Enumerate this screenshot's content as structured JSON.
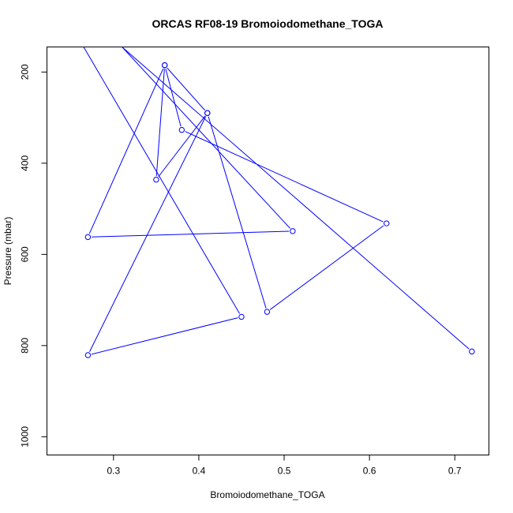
{
  "chart_data": {
    "type": "line",
    "title": "ORCAS RF08-19 Bromoiodomethane_TOGA",
    "xlabel": "Bromoiodomethane_TOGA",
    "ylabel": "Pressure (mbar)",
    "xlim": [
      0.222,
      0.74
    ],
    "ylim": [
      1040,
      145
    ],
    "y_inverted": true,
    "xticks": [
      0.3,
      0.4,
      0.5,
      0.6,
      0.7
    ],
    "xtick_labels": [
      "0.3",
      "0.4",
      "0.5",
      "0.6",
      "0.7"
    ],
    "yticks": [
      200,
      400,
      600,
      800,
      1000
    ],
    "ytick_labels": [
      "200",
      "400",
      "600",
      "800",
      "1000"
    ],
    "grid": false,
    "legend": "none",
    "series": [
      {
        "color": "#0000ff",
        "marker": "open-circle",
        "points": [
          {
            "x": 0.72,
            "y": 813
          },
          {
            "x": 0.31,
            "y": 145,
            "marker": false
          },
          {
            "x": 0.51,
            "y": 549
          },
          {
            "x": 0.27,
            "y": 562
          },
          {
            "x": 0.36,
            "y": 185
          },
          {
            "x": 0.38,
            "y": 327
          },
          {
            "x": 0.62,
            "y": 532
          },
          {
            "x": 0.48,
            "y": 726
          },
          {
            "x": 0.41,
            "y": 290
          },
          {
            "x": 0.35,
            "y": 436
          },
          {
            "x": 0.36,
            "y": 185
          },
          {
            "x": 0.41,
            "y": 290
          },
          {
            "x": 0.27,
            "y": 821
          },
          {
            "x": 0.45,
            "y": 737
          },
          {
            "x": 0.265,
            "y": 145,
            "marker": false
          }
        ]
      }
    ]
  }
}
